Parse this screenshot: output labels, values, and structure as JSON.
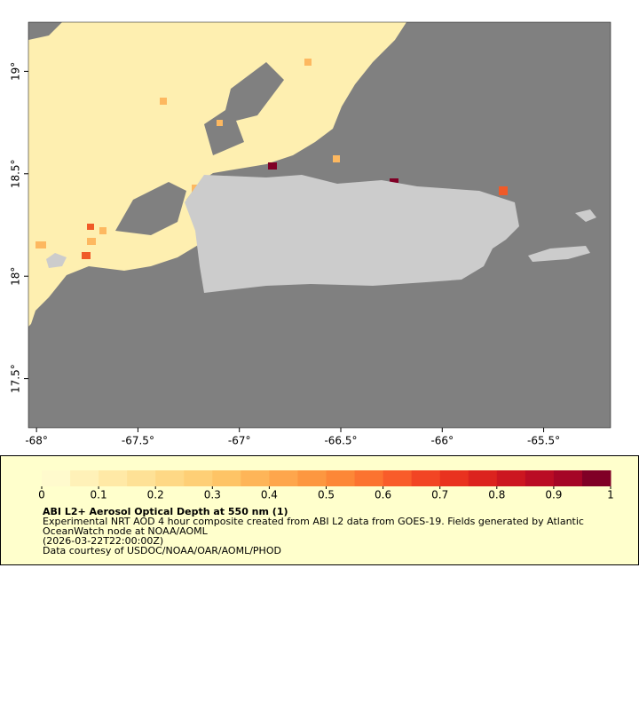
{
  "chart_data": {
    "type": "map",
    "xlim": [
      -68.04,
      -65.17
    ],
    "ylim": [
      17.26,
      19.24
    ],
    "xticks": [
      {
        "value": -68,
        "label": "-68°"
      },
      {
        "value": -67.5,
        "label": "-67.5°"
      },
      {
        "value": -67,
        "label": "-67°"
      },
      {
        "value": -66.5,
        "label": "-66.5°"
      },
      {
        "value": -66,
        "label": "-66°"
      },
      {
        "value": -65.5,
        "label": "-65.5°"
      }
    ],
    "yticks": [
      {
        "value": 17.5,
        "label": "17.5°"
      },
      {
        "value": 18,
        "label": "18°"
      },
      {
        "value": 18.5,
        "label": "18.5°"
      },
      {
        "value": 19,
        "label": "19°"
      }
    ],
    "colorbar": {
      "lim": [
        0,
        1
      ],
      "ticks": [
        0,
        0.1,
        0.2,
        0.3,
        0.4,
        0.5,
        0.6,
        0.7,
        0.8,
        0.9,
        1
      ],
      "colors": [
        "#fffacd",
        "#fff1b8",
        "#ffe9a6",
        "#fee196",
        "#fed885",
        "#fecf76",
        "#fec466",
        "#feb558",
        "#fea64c",
        "#fd9740",
        "#fd8737",
        "#fc7330",
        "#f95c2a",
        "#f24524",
        "#e9321f",
        "#dc231e",
        "#cc1620",
        "#ba0c24",
        "#a50526",
        "#800026"
      ]
    },
    "title": "ABI L2+ Aerosol Optical Depth at 550 nm (1)",
    "description": "Experimental NRT AOD 4 hour composite created from ABI L2 data from GOES-19. Fields generated by Atlantic OceanWatch node at NOAA/AOML",
    "time": "(2026-03-22T22:00:00Z)",
    "credit": "Data courtesy of USDOC/NOAA/OAR/AOML/PHOD"
  }
}
